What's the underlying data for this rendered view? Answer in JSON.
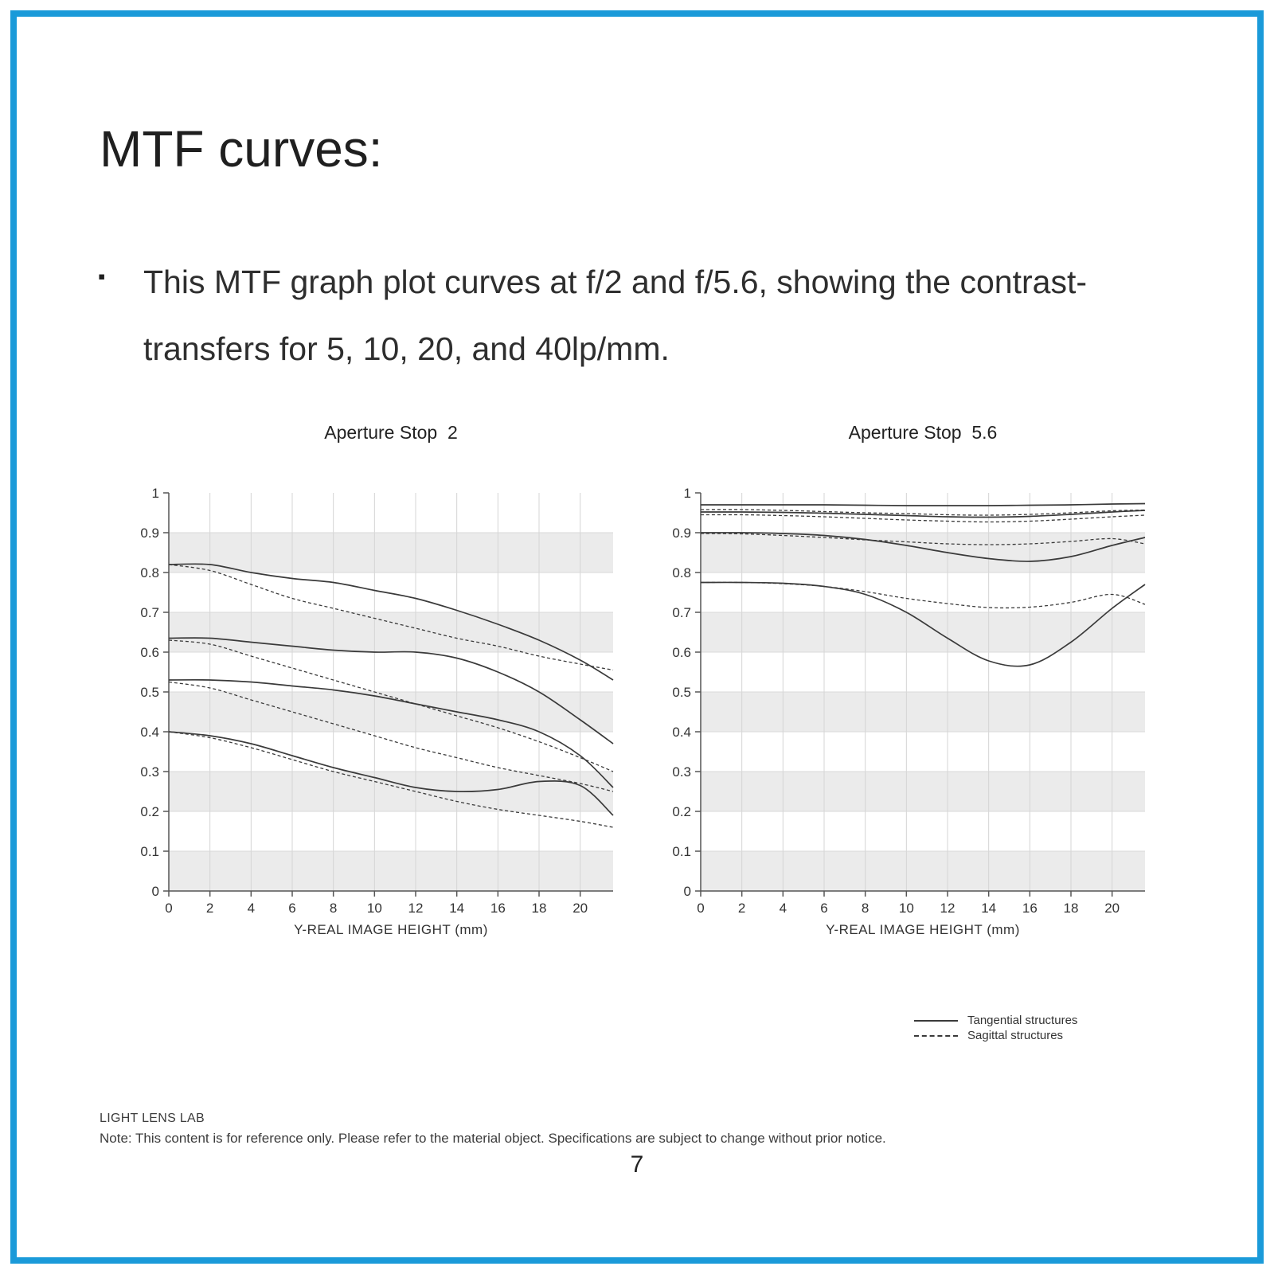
{
  "page": {
    "number": "7",
    "border_color": "#1a9ad9"
  },
  "title": "MTF curves:",
  "bullet": {
    "marker": "▪",
    "text": "This MTF graph plot curves at f/2 and f/5.6, showing the contrast-transfers for 5, 10, 20, and 40lp/mm."
  },
  "legend": {
    "tangential": "Tangential structures",
    "sagittal": "Sagittal structures"
  },
  "footer": {
    "brand": "LIGHT LENS LAB",
    "note": "Note: This content is for reference only. Please refer to the material object. Specifications are subject to change without prior notice."
  },
  "chart_data": [
    {
      "type": "line",
      "title": "Aperture Stop  2",
      "xlabel": "Y-REAL IMAGE HEIGHT (mm)",
      "ylabel": "",
      "xlim": [
        0,
        21.6
      ],
      "ylim": [
        0,
        1
      ],
      "grid": "horizontal-bands-and-vertical-gridlines",
      "legend_position": "below-right-of-second-chart",
      "xticks": [
        0,
        2,
        4,
        6,
        8,
        10,
        12,
        14,
        16,
        18,
        20
      ],
      "yticks": [
        0,
        0.1,
        0.2,
        0.3,
        0.4,
        0.5,
        0.6,
        0.7,
        0.8,
        0.9,
        1
      ],
      "ytick_labels": [
        "0",
        "0.1",
        "0.2",
        "0.3",
        "0.4",
        "0.5",
        "0.6",
        "0.7",
        "0.8",
        "0.9",
        "1"
      ],
      "x": [
        0,
        2,
        4,
        6,
        8,
        10,
        12,
        14,
        16,
        18,
        20,
        21.6
      ],
      "series": [
        {
          "name": "5 lp/mm tangential",
          "style": "solid",
          "values": [
            0.82,
            0.82,
            0.8,
            0.785,
            0.775,
            0.755,
            0.735,
            0.705,
            0.67,
            0.63,
            0.58,
            0.53
          ]
        },
        {
          "name": "5 lp/mm sagittal",
          "style": "dashed",
          "values": [
            0.82,
            0.805,
            0.77,
            0.735,
            0.71,
            0.685,
            0.66,
            0.635,
            0.615,
            0.59,
            0.57,
            0.555
          ]
        },
        {
          "name": "10 lp/mm tangential",
          "style": "solid",
          "values": [
            0.635,
            0.635,
            0.625,
            0.615,
            0.605,
            0.6,
            0.6,
            0.585,
            0.55,
            0.5,
            0.43,
            0.37
          ]
        },
        {
          "name": "10 lp/mm sagittal",
          "style": "dashed",
          "values": [
            0.63,
            0.62,
            0.59,
            0.56,
            0.53,
            0.5,
            0.47,
            0.44,
            0.41,
            0.375,
            0.335,
            0.3
          ]
        },
        {
          "name": "20 lp/mm tangential",
          "style": "solid",
          "values": [
            0.53,
            0.53,
            0.525,
            0.515,
            0.505,
            0.49,
            0.47,
            0.45,
            0.43,
            0.4,
            0.34,
            0.26
          ]
        },
        {
          "name": "20 lp/mm sagittal",
          "style": "dashed",
          "values": [
            0.525,
            0.51,
            0.48,
            0.45,
            0.42,
            0.39,
            0.36,
            0.335,
            0.31,
            0.29,
            0.27,
            0.25
          ]
        },
        {
          "name": "40 lp/mm tangential",
          "style": "solid",
          "values": [
            0.4,
            0.39,
            0.37,
            0.34,
            0.31,
            0.285,
            0.26,
            0.25,
            0.255,
            0.275,
            0.265,
            0.19
          ]
        },
        {
          "name": "40 lp/mm sagittal",
          "style": "dashed",
          "values": [
            0.4,
            0.385,
            0.36,
            0.33,
            0.3,
            0.275,
            0.25,
            0.225,
            0.205,
            0.19,
            0.175,
            0.16
          ]
        }
      ]
    },
    {
      "type": "line",
      "title": "Aperture Stop  5.6",
      "xlabel": "Y-REAL IMAGE HEIGHT (mm)",
      "ylabel": "",
      "xlim": [
        0,
        21.6
      ],
      "ylim": [
        0,
        1
      ],
      "grid": "horizontal-bands-and-vertical-gridlines",
      "xticks": [
        0,
        2,
        4,
        6,
        8,
        10,
        12,
        14,
        16,
        18,
        20
      ],
      "yticks": [
        0,
        0.1,
        0.2,
        0.3,
        0.4,
        0.5,
        0.6,
        0.7,
        0.8,
        0.9,
        1
      ],
      "ytick_labels": [
        "0",
        "0.1",
        "0.2",
        "0.3",
        "0.4",
        "0.5",
        "0.6",
        "0.7",
        "0.8",
        "0.9",
        "1"
      ],
      "x": [
        0,
        2,
        4,
        6,
        8,
        10,
        12,
        14,
        16,
        18,
        20,
        21.6
      ],
      "series": [
        {
          "name": "5 lp/mm tangential",
          "style": "solid",
          "values": [
            0.97,
            0.97,
            0.97,
            0.97,
            0.969,
            0.968,
            0.968,
            0.968,
            0.969,
            0.97,
            0.972,
            0.973
          ]
        },
        {
          "name": "5 lp/mm sagittal",
          "style": "dashed",
          "values": [
            0.958,
            0.958,
            0.956,
            0.953,
            0.95,
            0.948,
            0.945,
            0.944,
            0.946,
            0.95,
            0.955,
            0.957
          ]
        },
        {
          "name": "10 lp/mm tangential",
          "style": "solid",
          "values": [
            0.952,
            0.952,
            0.951,
            0.949,
            0.946,
            0.943,
            0.94,
            0.939,
            0.941,
            0.946,
            0.952,
            0.956
          ]
        },
        {
          "name": "10 lp/mm sagittal",
          "style": "dashed",
          "values": [
            0.945,
            0.945,
            0.943,
            0.94,
            0.936,
            0.932,
            0.929,
            0.927,
            0.929,
            0.934,
            0.94,
            0.944
          ]
        },
        {
          "name": "20 lp/mm tangential",
          "style": "solid",
          "values": [
            0.9,
            0.9,
            0.898,
            0.893,
            0.883,
            0.868,
            0.85,
            0.835,
            0.828,
            0.84,
            0.868,
            0.888
          ]
        },
        {
          "name": "20 lp/mm sagittal",
          "style": "dashed",
          "values": [
            0.898,
            0.897,
            0.893,
            0.888,
            0.882,
            0.877,
            0.872,
            0.87,
            0.872,
            0.878,
            0.885,
            0.872
          ]
        },
        {
          "name": "40 lp/mm tangential",
          "style": "solid",
          "values": [
            0.775,
            0.775,
            0.773,
            0.765,
            0.745,
            0.7,
            0.635,
            0.578,
            0.568,
            0.625,
            0.71,
            0.77
          ]
        },
        {
          "name": "40 lp/mm sagittal",
          "style": "dashed",
          "values": [
            0.775,
            0.775,
            0.772,
            0.765,
            0.752,
            0.735,
            0.722,
            0.712,
            0.713,
            0.725,
            0.745,
            0.72
          ]
        }
      ]
    }
  ]
}
